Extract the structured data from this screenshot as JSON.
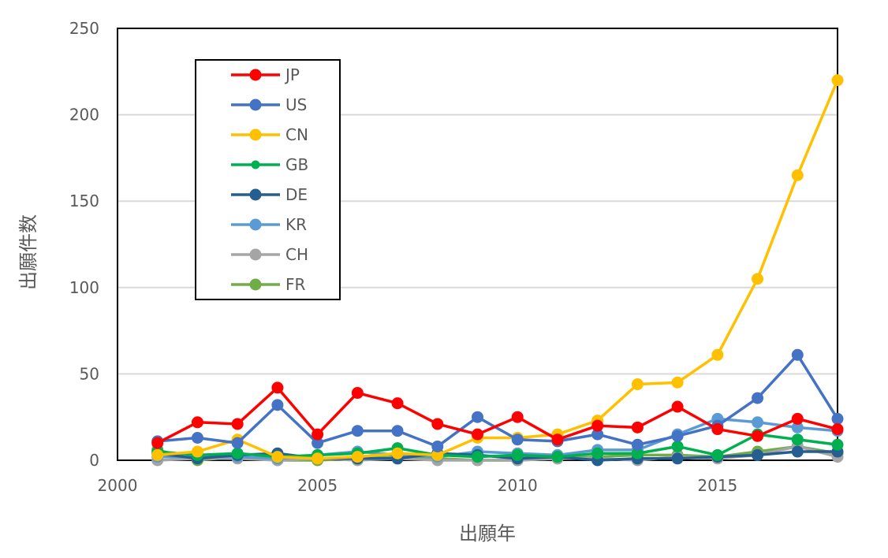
{
  "chart_data": {
    "type": "line",
    "title": "",
    "xlabel": "出願年",
    "ylabel": "出願件数",
    "xlim": [
      2000,
      2018
    ],
    "ylim": [
      0,
      250
    ],
    "x_ticks": [
      "2000",
      "2005",
      "2010",
      "2015"
    ],
    "y_ticks": [
      "0",
      "50",
      "100",
      "150",
      "200",
      "250"
    ],
    "grid": true,
    "legend_position": "top-left",
    "x": [
      2001,
      2002,
      2003,
      2004,
      2005,
      2006,
      2007,
      2008,
      2009,
      2010,
      2011,
      2012,
      2013,
      2014,
      2015,
      2016,
      2017,
      2018
    ],
    "series": [
      {
        "name": "JP",
        "color": "#ff0000",
        "values": [
          10,
          22,
          21,
          42,
          15,
          39,
          33,
          21,
          15,
          25,
          12,
          20,
          19,
          31,
          18,
          14,
          24,
          18
        ]
      },
      {
        "name": "US",
        "color": "#4472c4",
        "values": [
          11,
          13,
          10,
          32,
          10,
          17,
          17,
          8,
          25,
          12,
          11,
          15,
          9,
          14,
          20,
          36,
          61,
          24
        ]
      },
      {
        "name": "CN",
        "color": "#ffc000",
        "values": [
          3,
          5,
          12,
          2,
          1,
          2,
          4,
          3,
          13,
          13,
          15,
          23,
          44,
          45,
          61,
          105,
          165,
          220
        ]
      },
      {
        "name": "GB",
        "color": "#00b050",
        "values": [
          5,
          3,
          4,
          2,
          3,
          4,
          7,
          3,
          2,
          3,
          2,
          4,
          4,
          8,
          3,
          15,
          12,
          9
        ]
      },
      {
        "name": "DE",
        "color": "#255e91",
        "values": [
          4,
          1,
          3,
          4,
          1,
          1,
          1,
          4,
          3,
          1,
          2,
          0,
          1,
          1,
          2,
          3,
          5,
          5
        ]
      },
      {
        "name": "KR",
        "color": "#5b9bd5",
        "values": [
          2,
          2,
          2,
          1,
          3,
          5,
          3,
          2,
          5,
          4,
          3,
          6,
          6,
          15,
          24,
          22,
          19,
          17
        ]
      },
      {
        "name": "CH",
        "color": "#a5a5a5",
        "values": [
          0,
          1,
          1,
          0,
          1,
          0,
          1,
          0,
          0,
          0,
          1,
          1,
          0,
          2,
          1,
          3,
          8,
          2
        ]
      },
      {
        "name": "FR",
        "color": "#70ad47",
        "values": [
          6,
          0,
          2,
          0,
          0,
          1,
          2,
          1,
          0,
          0,
          1,
          2,
          3,
          3,
          2,
          5,
          8,
          4
        ]
      }
    ]
  }
}
